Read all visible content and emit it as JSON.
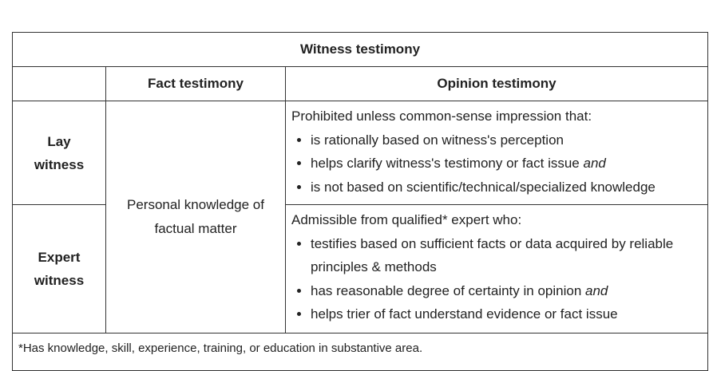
{
  "title": "Witness testimony",
  "headers": {
    "fact": "Fact testimony",
    "opinion": "Opinion testimony"
  },
  "rows": {
    "lay": {
      "label_line1": "Lay",
      "label_line2": "witness",
      "intro": "Prohibited unless common-sense impression that:",
      "items": [
        {
          "text": "is rationally based on witness's perception",
          "emph": ""
        },
        {
          "text": "helps clarify witness's testimony or fact issue ",
          "emph": "and"
        },
        {
          "text": "is not based on scientific/technical/specialized knowledge",
          "emph": ""
        }
      ]
    },
    "expert": {
      "label_line1": "Expert",
      "label_line2": "witness",
      "intro": "Admissible from qualified* expert who:",
      "items": [
        {
          "text": "testifies based on sufficient facts or data acquired by reliable principles & methods",
          "emph": ""
        },
        {
          "text": "has reasonable degree of certainty in opinion ",
          "emph": "and"
        },
        {
          "text": "helps trier of fact understand evidence or fact issue",
          "emph": ""
        }
      ]
    }
  },
  "fact_text": {
    "line1": "Personal knowledge of",
    "line2": "factual matter"
  },
  "footnote": "*Has knowledge, skill, experience, training, or education in substantive area."
}
